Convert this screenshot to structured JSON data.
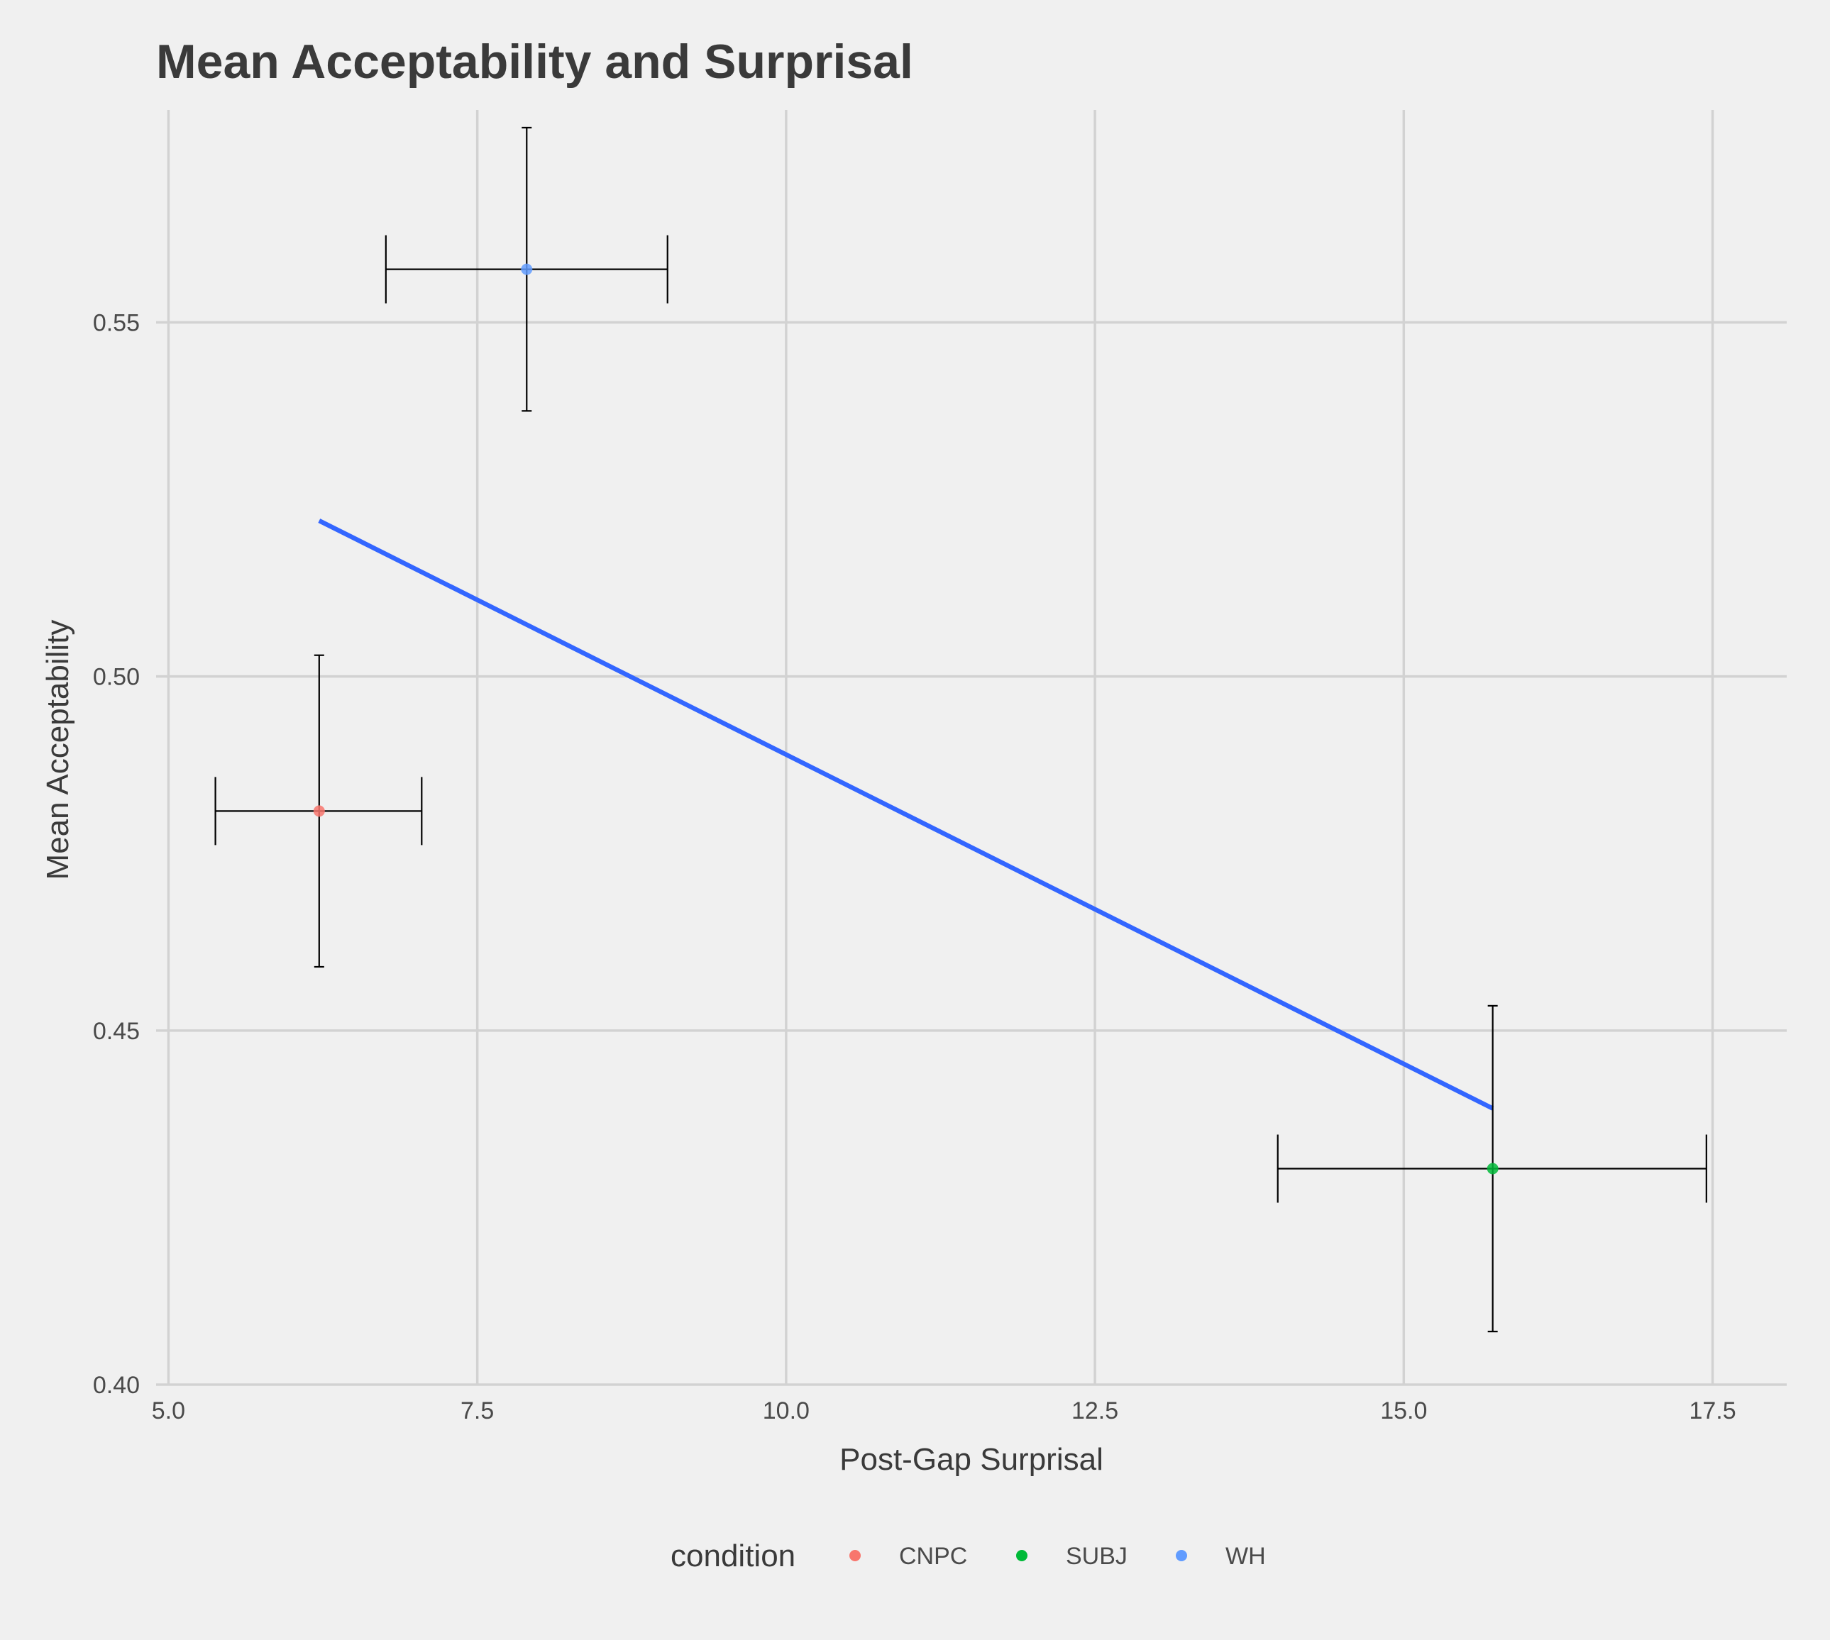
{
  "chart_data": {
    "type": "scatter",
    "title": "Mean Acceptability and Surprisal",
    "xlabel": "Post-Gap Surprisal",
    "ylabel": "Mean Acceptability",
    "xlim": [
      4.9,
      18.1
    ],
    "ylim": [
      0.4,
      0.58
    ],
    "x_ticks": [
      5.0,
      7.5,
      10.0,
      12.5,
      15.0,
      17.5
    ],
    "x_tick_labels": [
      "5.0",
      "7.5",
      "10.0",
      "12.5",
      "15.0",
      "17.5"
    ],
    "y_ticks": [
      0.4,
      0.45,
      0.5,
      0.55
    ],
    "y_tick_labels": [
      "0.40",
      "0.45",
      "0.50",
      "0.55"
    ],
    "grid": true,
    "legend": {
      "title": "condition",
      "placement": "bottom"
    },
    "series": [
      {
        "name": "CNPC",
        "color": "#f8766d",
        "x": 6.22,
        "y": 0.481,
        "x_err": [
          5.38,
          7.05
        ],
        "y_err": [
          0.459,
          0.503
        ]
      },
      {
        "name": "SUBJ",
        "color": "#00ba38",
        "x": 15.72,
        "y": 0.4305,
        "x_err": [
          13.98,
          17.45
        ],
        "y_err": [
          0.4075,
          0.4535
        ]
      },
      {
        "name": "WH",
        "color": "#619cff",
        "x": 7.9,
        "y": 0.5575,
        "x_err": [
          6.76,
          9.04
        ],
        "y_err": [
          0.5375,
          0.5775
        ]
      }
    ],
    "fit_line": {
      "color": "#3366ff",
      "x": [
        6.22,
        15.72
      ],
      "y": [
        0.522,
        0.439
      ]
    }
  }
}
